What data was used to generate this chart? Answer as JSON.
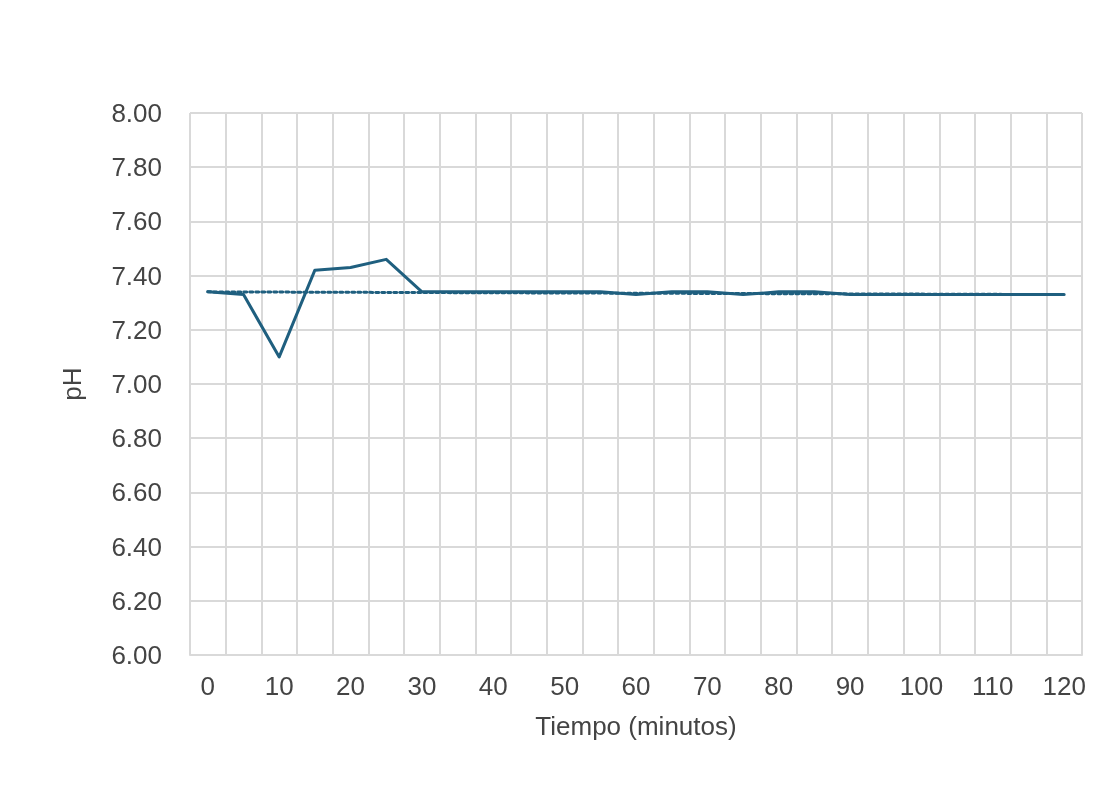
{
  "chart_data": {
    "type": "line",
    "xlabel": "Tiempo (minutos)",
    "ylabel": "pH",
    "categories": [
      "0",
      null,
      "10",
      null,
      "20",
      null,
      "30",
      null,
      "40",
      null,
      "50",
      null,
      "60",
      null,
      "70",
      null,
      "80",
      null,
      "90",
      null,
      "100",
      null,
      "110",
      null,
      "120"
    ],
    "ylim": [
      6,
      8
    ],
    "yticks": [
      {
        "value": 6,
        "label": "6.00"
      },
      {
        "value": 6.2,
        "label": "6.20"
      },
      {
        "value": 6.4,
        "label": "6.40"
      },
      {
        "value": 6.6,
        "label": "6.60"
      },
      {
        "value": 6.8,
        "label": "6.80"
      },
      {
        "value": 7,
        "label": "7.00"
      },
      {
        "value": 7.2,
        "label": "7.20"
      },
      {
        "value": 7.4,
        "label": "7.40"
      },
      {
        "value": 7.6,
        "label": "7.60"
      },
      {
        "value": 7.8,
        "label": "7.80"
      },
      {
        "value": 8,
        "label": "8.00"
      }
    ],
    "grid": true,
    "marker": "none",
    "series": [
      {
        "color": "#1f5f7f",
        "line_style": "solid",
        "values": [
          7.34,
          7.33,
          7.1,
          7.42,
          7.43,
          7.46,
          7.34,
          7.34,
          7.34,
          7.34,
          7.34,
          7.34,
          7.33,
          7.34,
          7.34,
          7.33,
          7.34,
          7.34,
          7.33,
          7.33,
          7.33,
          7.33,
          7.33,
          7.33,
          7.33
        ]
      },
      {
        "color": "#1f5f7f",
        "line_style": "dotted",
        "x": [
          "0",
          "120"
        ],
        "values": [
          7.34,
          7.33
        ]
      }
    ]
  }
}
